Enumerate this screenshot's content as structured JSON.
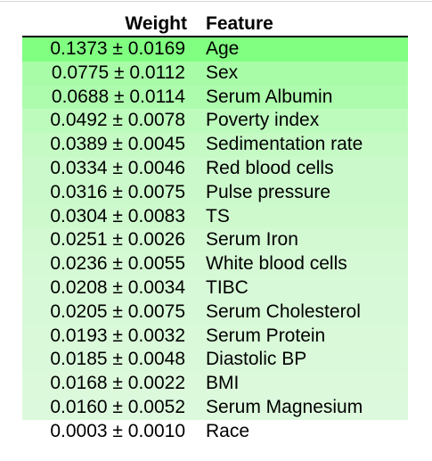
{
  "table": {
    "headers": {
      "weight": "Weight",
      "feature": "Feature"
    },
    "rows": [
      {
        "weight": "0.1373 ± 0.0169",
        "feature": "Age",
        "color": "#80ff80"
      },
      {
        "weight": "0.0775 ± 0.0112",
        "feature": "Sex",
        "color": "#a8fca8"
      },
      {
        "weight": "0.0688 ± 0.0114",
        "feature": "Serum Albumin",
        "color": "#adfcad"
      },
      {
        "weight": "0.0492 ± 0.0078",
        "feature": "Poverty index",
        "color": "#bdfbbd"
      },
      {
        "weight": "0.0389 ± 0.0045",
        "feature": "Sedimentation rate",
        "color": "#c5fac5"
      },
      {
        "weight": "0.0334 ± 0.0046",
        "feature": "Red blood cells",
        "color": "#cbf9cb"
      },
      {
        "weight": "0.0316 ± 0.0075",
        "feature": "Pulse pressure",
        "color": "#ccf9cc"
      },
      {
        "weight": "0.0304 ± 0.0083",
        "feature": "TS",
        "color": "#cdf9cd"
      },
      {
        "weight": "0.0251 ± 0.0026",
        "feature": "Serum Iron",
        "color": "#d3f9d3"
      },
      {
        "weight": "0.0236 ± 0.0055",
        "feature": "White blood cells",
        "color": "#d4f9d4"
      },
      {
        "weight": "0.0208 ± 0.0034",
        "feature": "TIBC",
        "color": "#d7f9d7"
      },
      {
        "weight": "0.0205 ± 0.0075",
        "feature": "Serum Cholesterol",
        "color": "#d8f9d8"
      },
      {
        "weight": "0.0193 ± 0.0032",
        "feature": "Serum Protein",
        "color": "#d9f9d9"
      },
      {
        "weight": "0.0185 ± 0.0048",
        "feature": "Diastolic BP",
        "color": "#daf9da"
      },
      {
        "weight": "0.0168 ± 0.0022",
        "feature": "BMI",
        "color": "#dcf9dc"
      },
      {
        "weight": "0.0160 ± 0.0052",
        "feature": "Serum Magnesium",
        "color": "#ddf9dd"
      },
      {
        "weight": "0.0003 ± 0.0010",
        "feature": "Race",
        "color": "#ffffff"
      }
    ]
  }
}
